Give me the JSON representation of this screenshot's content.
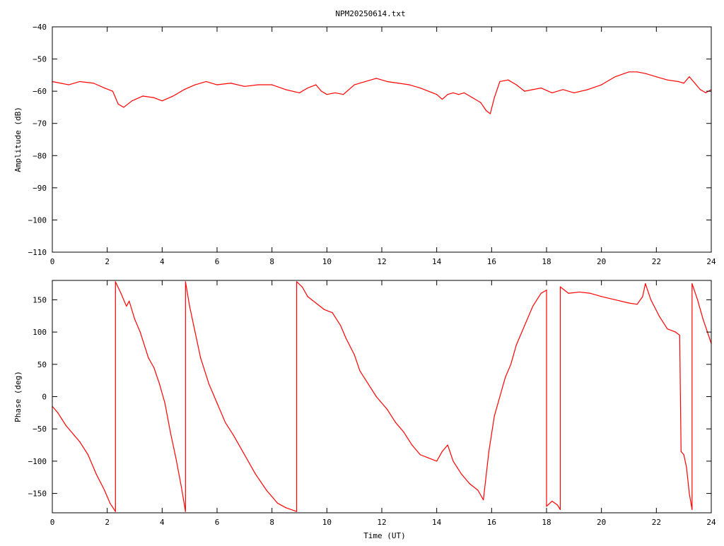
{
  "title": "NPM20250614.txt",
  "colors": {
    "trace": "#ff0000",
    "axis": "#000000",
    "background": "#ffffff"
  },
  "chart_data": [
    {
      "type": "line",
      "ylabel": "Amplitude (dB)",
      "xlabel": "",
      "xlim": [
        0,
        24
      ],
      "ylim": [
        -110,
        -40
      ],
      "x_ticks": [
        0,
        2,
        4,
        6,
        8,
        10,
        12,
        14,
        16,
        18,
        20,
        22,
        24
      ],
      "y_ticks": [
        -110,
        -100,
        -90,
        -80,
        -70,
        -60,
        -50,
        -40
      ],
      "grid": false,
      "series": [
        {
          "x": [
            0,
            0.3,
            0.6,
            1.0,
            1.5,
            1.9,
            2.2,
            2.4,
            2.6,
            2.9,
            3.3,
            3.7,
            4.0,
            4.4,
            4.8,
            5.2,
            5.6,
            6.0,
            6.5,
            7.0,
            7.5,
            8.0,
            8.5,
            9.0,
            9.3,
            9.6,
            9.8,
            10.0,
            10.3,
            10.6,
            11.0,
            11.4,
            11.8,
            12.2,
            12.6,
            13.0,
            13.4,
            13.7,
            14.0,
            14.2,
            14.4,
            14.6,
            14.8,
            15.0,
            15.3,
            15.6,
            15.8,
            15.95,
            16.1,
            16.3,
            16.6,
            16.9,
            17.2,
            17.5,
            17.8,
            18.2,
            18.6,
            19.0,
            19.5,
            20.0,
            20.5,
            21.0,
            21.3,
            21.6,
            22.0,
            22.4,
            22.8,
            23.0,
            23.2,
            23.4,
            23.6,
            23.8,
            24.0
          ],
          "y": [
            -57,
            -57.5,
            -58,
            -57,
            -57.5,
            -59,
            -60,
            -64,
            -65,
            -63,
            -61.5,
            -62,
            -63,
            -61.5,
            -59.5,
            -58,
            -57,
            -58,
            -57.5,
            -58.5,
            -58,
            -58,
            -59.5,
            -60.5,
            -59,
            -58,
            -60,
            -61,
            -60.5,
            -61,
            -58,
            -57,
            -56,
            -57,
            -57.5,
            -58,
            -59,
            -60,
            -61,
            -62.5,
            -61,
            -60.5,
            -61,
            -60.5,
            -62,
            -63.5,
            -66,
            -67,
            -62,
            -57,
            -56.5,
            -58,
            -60,
            -59.5,
            -59,
            -60.5,
            -59.5,
            -60.5,
            -59.5,
            -58,
            -55.5,
            -54,
            -54,
            -54.5,
            -55.5,
            -56.5,
            -57,
            -57.5,
            -55.5,
            -57.5,
            -59.5,
            -60.5,
            -59.5
          ]
        }
      ]
    },
    {
      "type": "line",
      "ylabel": "Phase (deg)",
      "xlabel": "Time (UT)",
      "xlim": [
        0,
        24
      ],
      "ylim": [
        -180,
        180
      ],
      "x_ticks": [
        0,
        2,
        4,
        6,
        8,
        10,
        12,
        14,
        16,
        18,
        20,
        22,
        24
      ],
      "y_ticks": [
        -150,
        -100,
        -50,
        0,
        50,
        100,
        150
      ],
      "grid": false,
      "series": [
        {
          "x": [
            0,
            0.2,
            0.5,
            0.8,
            1.0,
            1.3,
            1.6,
            1.9,
            2.1,
            2.3,
            2.3,
            2.5,
            2.7,
            2.8,
            3.0,
            3.2,
            3.5,
            3.7,
            3.9,
            4.1,
            4.3,
            4.5,
            4.7,
            4.85,
            4.85,
            5.0,
            5.2,
            5.4,
            5.7,
            6.0,
            6.3,
            6.6,
            7.0,
            7.4,
            7.8,
            8.2,
            8.5,
            8.7,
            8.9,
            8.9,
            9.1,
            9.3,
            9.6,
            9.9,
            10.2,
            10.5,
            10.7,
            11.0,
            11.2,
            11.5,
            11.8,
            12.2,
            12.5,
            12.8,
            13.1,
            13.4,
            13.7,
            14.0,
            14.2,
            14.4,
            14.6,
            14.9,
            15.2,
            15.5,
            15.7,
            15.9,
            16.1,
            16.3,
            16.5,
            16.7,
            16.9,
            17.2,
            17.5,
            17.8,
            18.0,
            18.0,
            18.2,
            18.4,
            18.5,
            18.5,
            18.8,
            19.2,
            19.6,
            20.0,
            20.5,
            21.0,
            21.3,
            21.5,
            21.6,
            21.6,
            21.8,
            22.1,
            22.4,
            22.7,
            22.85,
            22.9,
            23.0,
            23.1,
            23.2,
            23.3,
            23.3,
            23.5,
            23.7,
            23.9,
            24.0
          ],
          "y": [
            -15,
            -25,
            -45,
            -60,
            -70,
            -90,
            -120,
            -145,
            -165,
            -178,
            178,
            160,
            140,
            148,
            120,
            100,
            60,
            45,
            20,
            -10,
            -55,
            -95,
            -140,
            -178,
            178,
            140,
            100,
            60,
            20,
            -10,
            -40,
            -60,
            -90,
            -120,
            -145,
            -165,
            -172,
            -175,
            -178,
            178,
            170,
            155,
            145,
            135,
            130,
            110,
            90,
            65,
            40,
            20,
            0,
            -20,
            -40,
            -55,
            -75,
            -90,
            -95,
            -100,
            -85,
            -75,
            -100,
            -120,
            -135,
            -145,
            -160,
            -85,
            -30,
            0,
            30,
            50,
            80,
            110,
            140,
            160,
            165,
            -170,
            -162,
            -168,
            -175,
            170,
            160,
            162,
            160,
            155,
            150,
            145,
            143,
            155,
            175,
            175,
            150,
            125,
            105,
            100,
            95,
            -85,
            -90,
            -110,
            -150,
            -175,
            175,
            150,
            120,
            95,
            82
          ]
        }
      ]
    }
  ]
}
